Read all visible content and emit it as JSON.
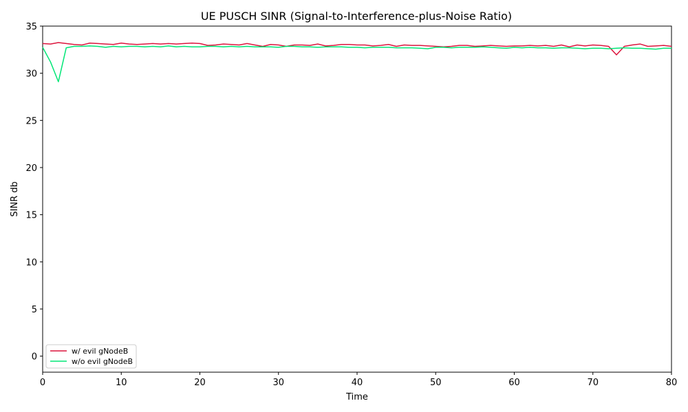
{
  "chart_data": {
    "type": "line",
    "title": "UE PUSCH SINR (Signal-to-Interference-plus-Noise Ratio)",
    "xlabel": "Time",
    "ylabel": "SINR db",
    "xlim": [
      0,
      80
    ],
    "ylim": [
      -1.7,
      35
    ],
    "xticks": [
      0,
      10,
      20,
      30,
      40,
      50,
      60,
      70,
      80
    ],
    "yticks": [
      0,
      5,
      10,
      15,
      20,
      25,
      30,
      35
    ],
    "grid": false,
    "legend_position": "lower-left",
    "x": [
      0,
      1,
      2,
      3,
      4,
      5,
      6,
      7,
      8,
      9,
      10,
      11,
      12,
      13,
      14,
      15,
      16,
      17,
      18,
      19,
      20,
      21,
      22,
      23,
      24,
      25,
      26,
      27,
      28,
      29,
      30,
      31,
      32,
      33,
      34,
      35,
      36,
      37,
      38,
      39,
      40,
      41,
      42,
      43,
      44,
      45,
      46,
      47,
      48,
      49,
      50,
      51,
      52,
      53,
      54,
      55,
      56,
      57,
      58,
      59,
      60,
      61,
      62,
      63,
      64,
      65,
      66,
      67,
      68,
      69,
      70,
      71,
      72,
      73,
      74,
      75,
      76,
      77,
      78,
      79,
      80
    ],
    "series": [
      {
        "name": "w/ evil gNodeB",
        "color": "#dc143c",
        "values": [
          33.15,
          33.1,
          33.25,
          33.15,
          33.05,
          33.0,
          33.2,
          33.15,
          33.1,
          33.05,
          33.2,
          33.1,
          33.05,
          33.1,
          33.15,
          33.1,
          33.15,
          33.1,
          33.15,
          33.2,
          33.15,
          32.95,
          33.0,
          33.1,
          33.05,
          33.0,
          33.15,
          33.0,
          32.85,
          33.05,
          33.0,
          32.85,
          33.0,
          33.0,
          32.95,
          33.1,
          32.9,
          32.95,
          33.05,
          33.05,
          33.0,
          33.0,
          32.9,
          32.95,
          33.05,
          32.85,
          33.0,
          32.95,
          32.95,
          32.9,
          32.85,
          32.8,
          32.85,
          32.95,
          32.95,
          32.85,
          32.9,
          32.95,
          32.9,
          32.85,
          32.9,
          32.9,
          32.95,
          32.9,
          32.95,
          32.85,
          33.0,
          32.8,
          33.0,
          32.9,
          33.0,
          32.95,
          32.85,
          31.95,
          32.85,
          33.0,
          33.1,
          32.85,
          32.9,
          32.95,
          32.85
        ]
      },
      {
        "name": "w/o evil gNodeB",
        "color": "#00e676",
        "values": [
          32.75,
          31.2,
          29.1,
          32.7,
          32.85,
          32.85,
          32.9,
          32.85,
          32.75,
          32.85,
          32.8,
          32.85,
          32.85,
          32.8,
          32.85,
          32.8,
          32.9,
          32.8,
          32.85,
          32.8,
          32.8,
          32.85,
          32.85,
          32.8,
          32.85,
          32.8,
          32.85,
          32.8,
          32.8,
          32.8,
          32.75,
          32.85,
          32.85,
          32.8,
          32.8,
          32.75,
          32.8,
          32.8,
          32.8,
          32.75,
          32.75,
          32.7,
          32.75,
          32.75,
          32.75,
          32.7,
          32.7,
          32.7,
          32.65,
          32.6,
          32.75,
          32.75,
          32.7,
          32.75,
          32.75,
          32.75,
          32.8,
          32.75,
          32.7,
          32.65,
          32.75,
          32.7,
          32.75,
          32.7,
          32.7,
          32.65,
          32.7,
          32.7,
          32.65,
          32.6,
          32.65,
          32.65,
          32.6,
          32.65,
          32.7,
          32.65,
          32.65,
          32.6,
          32.55,
          32.65,
          32.65
        ]
      }
    ]
  }
}
